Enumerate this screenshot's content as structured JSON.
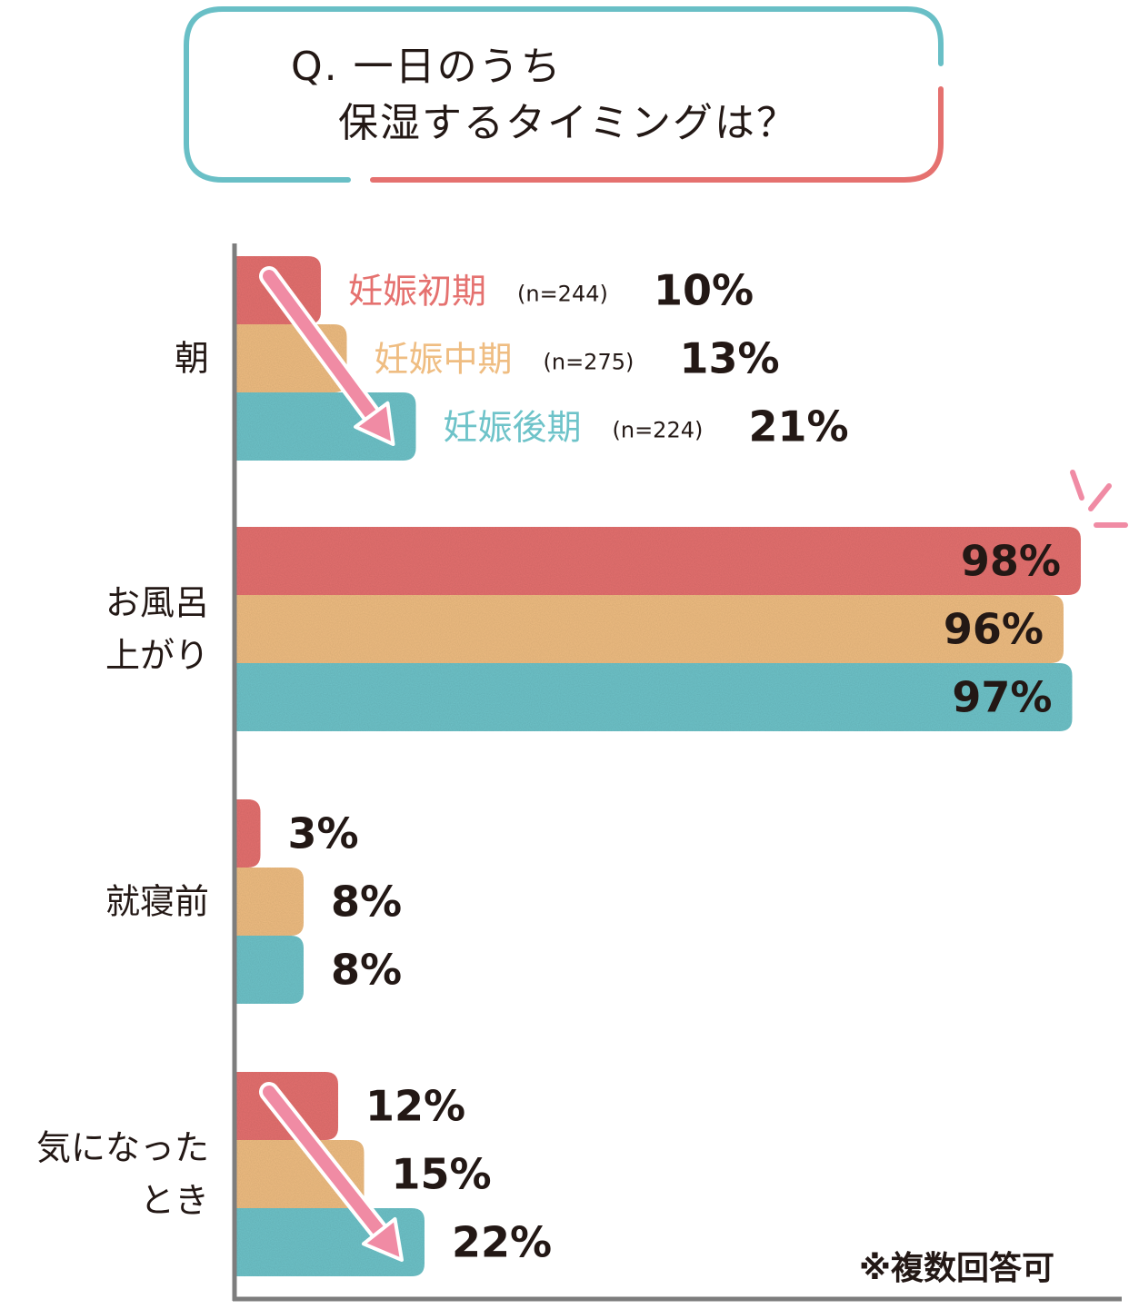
{
  "title": {
    "line1": "Q. 一日のうち",
    "line2": "保湿するタイミングは？"
  },
  "note": "※複数回答可",
  "colors": {
    "early": "#e5716f",
    "middle": "#efbd82",
    "late": "#6ec3c9",
    "arrow": "#f08ba4",
    "frame_top": "#69bfc6",
    "frame_bottom": "#e5716f",
    "axis": "#7d7d7d"
  },
  "chart_data": {
    "type": "bar",
    "orientation": "horizontal",
    "unit": "%",
    "xlim": [
      0,
      100
    ],
    "categories": [
      "朝",
      "お風呂上がり",
      "就寝前",
      "気になったとき"
    ],
    "category_lines": [
      [
        "朝"
      ],
      [
        "お風呂",
        "上がり"
      ],
      [
        "就寝前"
      ],
      [
        "気になった",
        "とき"
      ]
    ],
    "series": [
      {
        "name": "妊娠初期",
        "n_label": "(n=244)",
        "color": "#e5716f",
        "values": [
          10,
          98,
          3,
          12
        ]
      },
      {
        "name": "妊娠中期",
        "n_label": "(n=275)",
        "color": "#efbd82",
        "values": [
          13,
          96,
          8,
          15
        ]
      },
      {
        "name": "妊娠後期",
        "n_label": "(n=224)",
        "color": "#6ec3c9",
        "values": [
          21,
          97,
          8,
          22
        ]
      }
    ],
    "arrows_on_categories": [
      "朝",
      "気になったとき"
    ],
    "highlight_category": "お風呂上がり"
  }
}
